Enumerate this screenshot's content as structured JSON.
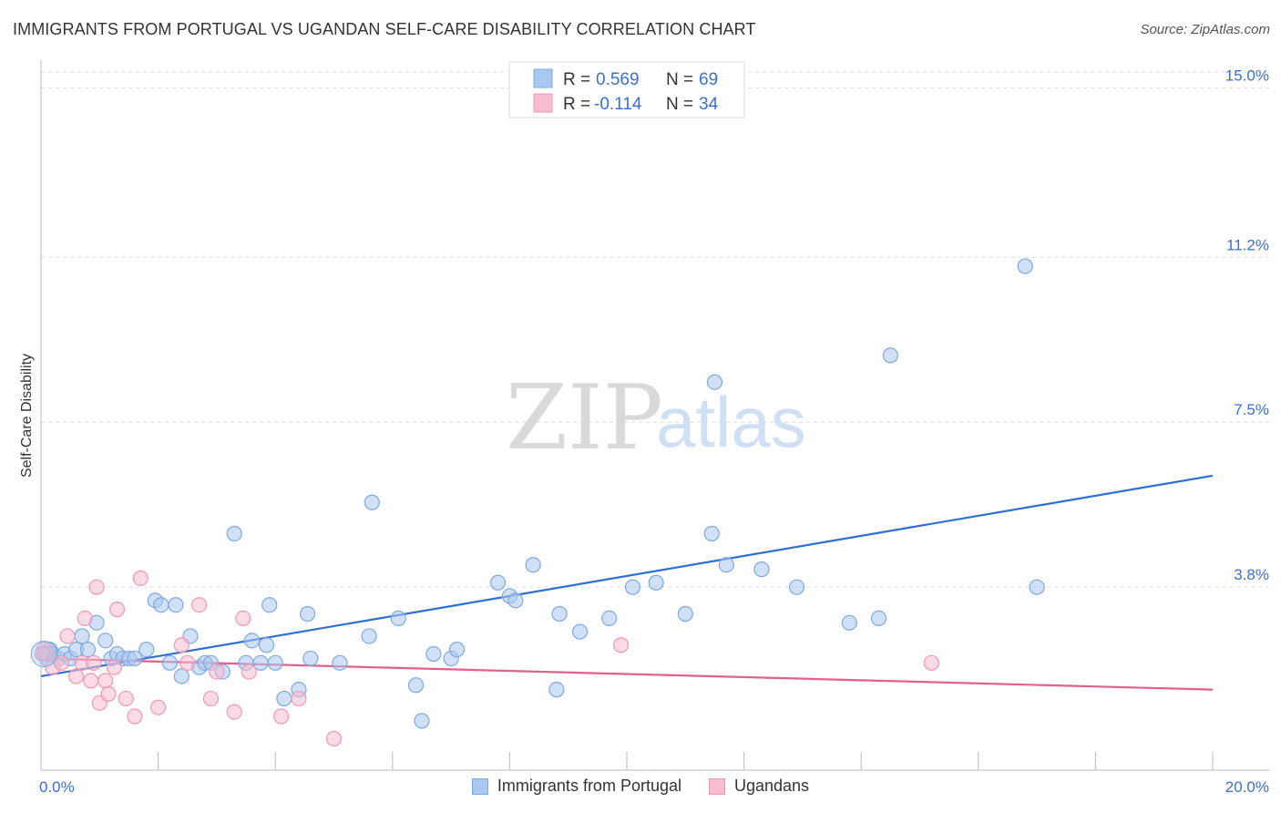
{
  "title": "IMMIGRANTS FROM PORTUGAL VS UGANDAN SELF-CARE DISABILITY CORRELATION CHART",
  "source": "Source: ZipAtlas.com",
  "watermark": {
    "zip": "ZIP",
    "atlas": "atlas"
  },
  "colors": {
    "blue_fill": "#a9c8f0",
    "blue_stroke": "#7ea8e0",
    "blue_line": "#2f6fd0",
    "pink_fill": "#f6bcd0",
    "pink_stroke": "#ee98b6",
    "pink_line": "#e0608e",
    "axis_text": "#3b6fd0",
    "grid": "#dddddd"
  },
  "legend_top": [
    {
      "r_label": "R =",
      "r_value": "0.569",
      "n_label": "N =",
      "n_value": "69",
      "color": "blue"
    },
    {
      "r_label": "R =",
      "r_value": "-0.114",
      "n_label": "N =",
      "n_value": "34",
      "color": "pink"
    }
  ],
  "chart_data": {
    "type": "scatter",
    "title": "IMMIGRANTS FROM PORTUGAL VS UGANDAN SELF-CARE DISABILITY CORRELATION CHART",
    "xlabel": "",
    "ylabel": "Self-Care Disability",
    "xlim": [
      0,
      20
    ],
    "ylim": [
      0,
      15.5
    ],
    "x_tick_labels": [
      {
        "value": 0,
        "label": "0.0%"
      },
      {
        "value": 20,
        "label": "20.0%"
      }
    ],
    "y_ticks": [
      {
        "value": 3.8,
        "label": "3.8%"
      },
      {
        "value": 7.5,
        "label": "7.5%"
      },
      {
        "value": 11.2,
        "label": "11.2%"
      },
      {
        "value": 15.0,
        "label": "15.0%"
      }
    ],
    "series": [
      {
        "name": "Immigrants from Portugal",
        "color": "blue",
        "R": 0.569,
        "N": 69,
        "trend": {
          "x": [
            0,
            20
          ],
          "y": [
            1.8,
            6.3
          ]
        },
        "points": [
          [
            0.05,
            2.3
          ],
          [
            0.1,
            2.2
          ],
          [
            0.15,
            2.4
          ],
          [
            0.2,
            2.3
          ],
          [
            0.3,
            2.2
          ],
          [
            0.4,
            2.3
          ],
          [
            0.5,
            2.2
          ],
          [
            0.6,
            2.4
          ],
          [
            0.7,
            2.7
          ],
          [
            0.8,
            2.4
          ],
          [
            0.95,
            3.0
          ],
          [
            1.1,
            2.6
          ],
          [
            1.2,
            2.2
          ],
          [
            1.3,
            2.3
          ],
          [
            1.4,
            2.2
          ],
          [
            1.5,
            2.2
          ],
          [
            1.6,
            2.2
          ],
          [
            1.8,
            2.4
          ],
          [
            1.95,
            3.5
          ],
          [
            2.05,
            3.4
          ],
          [
            2.2,
            2.1
          ],
          [
            2.3,
            3.4
          ],
          [
            2.4,
            1.8
          ],
          [
            2.55,
            2.7
          ],
          [
            2.7,
            2.0
          ],
          [
            2.8,
            2.1
          ],
          [
            2.9,
            2.1
          ],
          [
            3.1,
            1.9
          ],
          [
            3.3,
            5.0
          ],
          [
            3.5,
            2.1
          ],
          [
            3.6,
            2.6
          ],
          [
            3.75,
            2.1
          ],
          [
            3.85,
            2.5
          ],
          [
            3.9,
            3.4
          ],
          [
            4.0,
            2.1
          ],
          [
            4.15,
            1.3
          ],
          [
            4.4,
            1.5
          ],
          [
            4.55,
            3.2
          ],
          [
            4.6,
            2.2
          ],
          [
            5.1,
            2.1
          ],
          [
            5.6,
            2.7
          ],
          [
            5.65,
            5.7
          ],
          [
            6.1,
            3.1
          ],
          [
            6.4,
            1.6
          ],
          [
            6.5,
            0.8
          ],
          [
            6.7,
            2.3
          ],
          [
            7.0,
            2.2
          ],
          [
            7.1,
            2.4
          ],
          [
            7.8,
            3.9
          ],
          [
            8.0,
            3.6
          ],
          [
            8.1,
            3.5
          ],
          [
            8.4,
            4.3
          ],
          [
            8.8,
            1.5
          ],
          [
            8.85,
            3.2
          ],
          [
            9.2,
            2.8
          ],
          [
            9.7,
            3.1
          ],
          [
            10.1,
            3.8
          ],
          [
            10.5,
            3.9
          ],
          [
            11.0,
            3.2
          ],
          [
            11.45,
            5.0
          ],
          [
            11.5,
            8.4
          ],
          [
            11.7,
            4.3
          ],
          [
            12.3,
            4.2
          ],
          [
            12.9,
            3.8
          ],
          [
            13.8,
            3.0
          ],
          [
            14.3,
            3.1
          ],
          [
            14.5,
            9.0
          ],
          [
            16.8,
            11.0
          ],
          [
            17.0,
            3.8
          ]
        ]
      },
      {
        "name": "Ugandans",
        "color": "pink",
        "R": -0.114,
        "N": 34,
        "trend": {
          "x": [
            0,
            20
          ],
          "y": [
            2.2,
            1.5
          ]
        },
        "points": [
          [
            0.05,
            2.4
          ],
          [
            0.1,
            2.3
          ],
          [
            0.2,
            2.0
          ],
          [
            0.35,
            2.1
          ],
          [
            0.45,
            2.7
          ],
          [
            0.6,
            1.8
          ],
          [
            0.7,
            2.1
          ],
          [
            0.75,
            3.1
          ],
          [
            0.85,
            1.7
          ],
          [
            0.9,
            2.1
          ],
          [
            0.95,
            3.8
          ],
          [
            1.0,
            1.2
          ],
          [
            1.1,
            1.7
          ],
          [
            1.15,
            1.4
          ],
          [
            1.25,
            2.0
          ],
          [
            1.3,
            3.3
          ],
          [
            1.45,
            1.3
          ],
          [
            1.6,
            0.9
          ],
          [
            1.7,
            4.0
          ],
          [
            2.0,
            1.1
          ],
          [
            2.4,
            2.5
          ],
          [
            2.5,
            2.1
          ],
          [
            2.7,
            3.4
          ],
          [
            2.9,
            1.3
          ],
          [
            3.0,
            1.9
          ],
          [
            3.3,
            1.0
          ],
          [
            3.45,
            3.1
          ],
          [
            3.55,
            1.9
          ],
          [
            4.1,
            0.9
          ],
          [
            4.4,
            1.3
          ],
          [
            5.0,
            0.4
          ],
          [
            9.9,
            2.5
          ],
          [
            15.2,
            2.1
          ],
          [
            0.02,
            2.3
          ]
        ]
      }
    ]
  }
}
